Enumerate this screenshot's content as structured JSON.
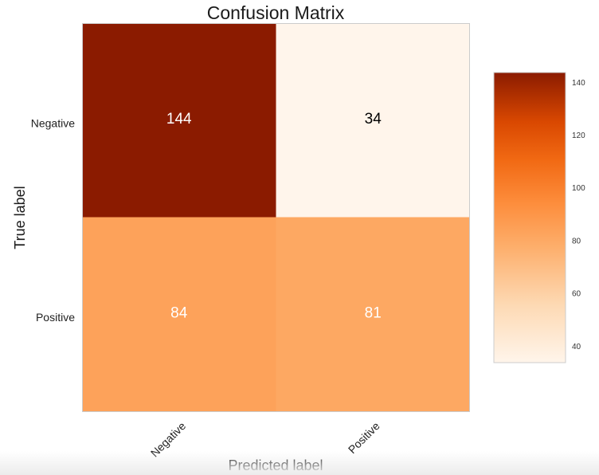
{
  "chart_data": {
    "type": "heatmap",
    "title": "Confusion Matrix",
    "xlabel": "Predicted label",
    "ylabel": "True label",
    "x_categories": [
      "Negative",
      "Positive"
    ],
    "y_categories": [
      "Negative",
      "Positive"
    ],
    "values": [
      [
        144,
        34
      ],
      [
        84,
        81
      ]
    ],
    "colormap": "Oranges",
    "colorbar": {
      "range": [
        34,
        144
      ],
      "ticks": [
        40,
        60,
        80,
        100,
        120,
        140
      ],
      "position": "right"
    },
    "grid": false,
    "colors": {
      "low": "#fff5eb",
      "mid_low": "#fdd9b3",
      "mid": "#fd8d3c",
      "mid_high": "#e8470b",
      "high": "#8b1b00",
      "text_light": "#ffffff",
      "text_dark": "#000000"
    }
  }
}
